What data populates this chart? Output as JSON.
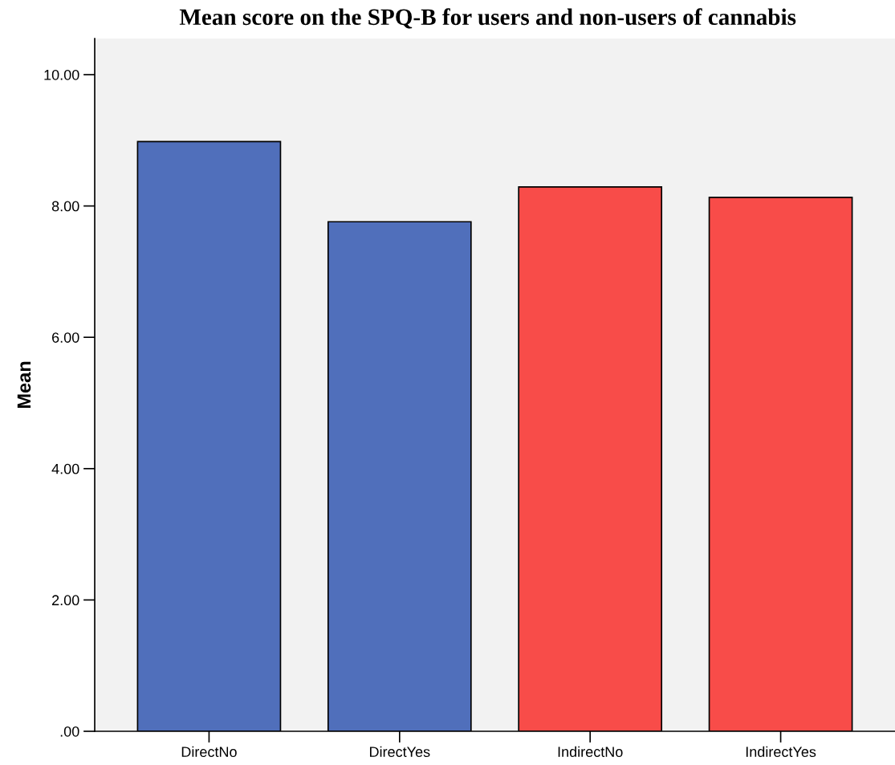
{
  "chart_data": {
    "type": "bar",
    "title": "Mean score on the SPQ-B for users and non-users of cannabis",
    "ylabel": "Mean",
    "categories": [
      "DirectNo",
      "DirectYes",
      "IndirectNo",
      "IndirectYes"
    ],
    "values": [
      8.98,
      7.76,
      8.29,
      8.13
    ],
    "colors": [
      "#506fbb",
      "#506fbb",
      "#f84c49",
      "#f84c49"
    ],
    "ylim": [
      0,
      10.55
    ],
    "yticks": [
      {
        "value": 0,
        "label": ".00"
      },
      {
        "value": 2,
        "label": "2.00"
      },
      {
        "value": 4,
        "label": "4.00"
      },
      {
        "value": 6,
        "label": "6.00"
      },
      {
        "value": 8,
        "label": "8.00"
      },
      {
        "value": 10,
        "label": "10.00"
      }
    ],
    "grid": false,
    "legend": false
  }
}
